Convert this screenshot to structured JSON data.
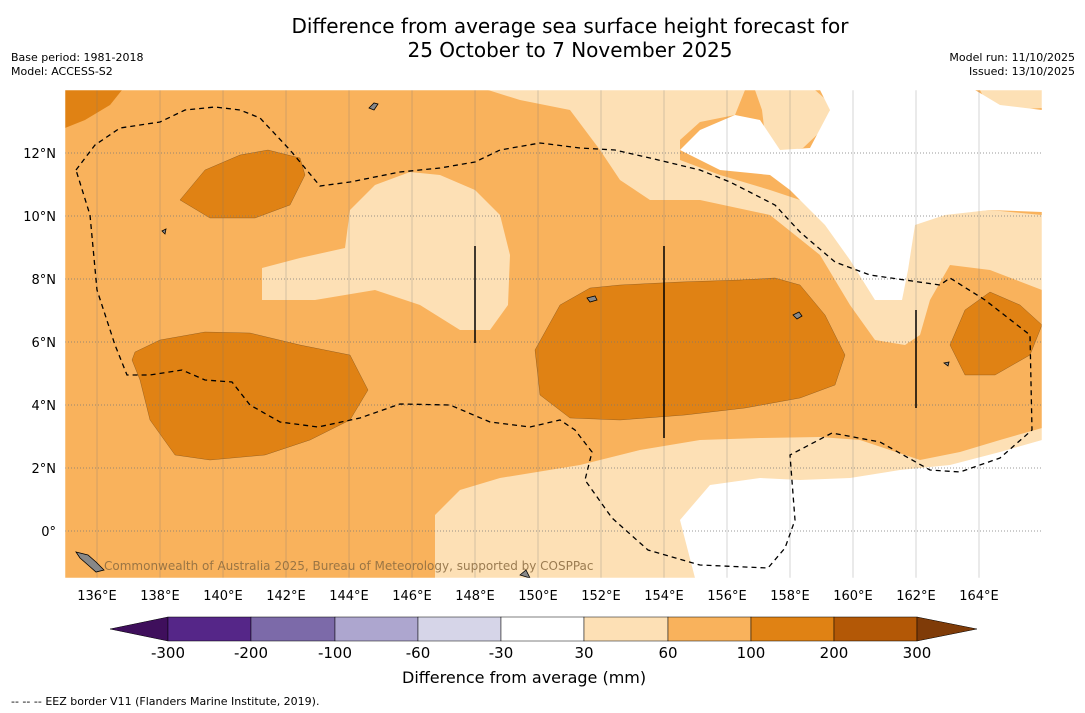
{
  "title_line1": "Difference from average sea surface height forecast for",
  "title_line2": "25 October to 7 November 2025",
  "base_period": "Base period: 1981-2018",
  "model": "Model: ACCESS-S2",
  "model_run": "Model run: 11/10/2025",
  "issued": "Issued: 13/10/2025",
  "credit": "Commonwealth of Australia 2025, Bureau of Meteorology, supported by COSPPac",
  "lon_labels": [
    "136°E",
    "138°E",
    "140°E",
    "142°E",
    "144°E",
    "146°E",
    "148°E",
    "150°E",
    "152°E",
    "154°E",
    "156°E",
    "158°E",
    "160°E",
    "162°E",
    "164°E"
  ],
  "lat_labels": [
    "12°N",
    "10°N",
    "8°N",
    "6°N",
    "4°N",
    "2°N",
    "0°"
  ],
  "colorbar": {
    "title": "Difference from average (mm)",
    "ticks": [
      "-300",
      "-200",
      "-100",
      "-60",
      "-30",
      "30",
      "60",
      "100",
      "200",
      "300"
    ],
    "colors": [
      "#3f0f5c",
      "#552688",
      "#7c6aa9",
      "#ada6cf",
      "#d6d5e8",
      "#ffffff",
      "#fde0b5",
      "#f9b25c",
      "#e08214",
      "#b35806",
      "#7f3b08"
    ]
  },
  "legend": {
    "color_ranges": [
      {
        "range": "30 to 60",
        "color": "#fde0b5"
      },
      {
        "range": "60 to 100",
        "color": "#f9b25c"
      },
      {
        "range": "100 to 200",
        "color": "#e08214"
      }
    ],
    "eez_label": "EEZ border V11 (Flanders Marine Institute, 2019).",
    "eez_symbol": "-- -- --"
  }
}
